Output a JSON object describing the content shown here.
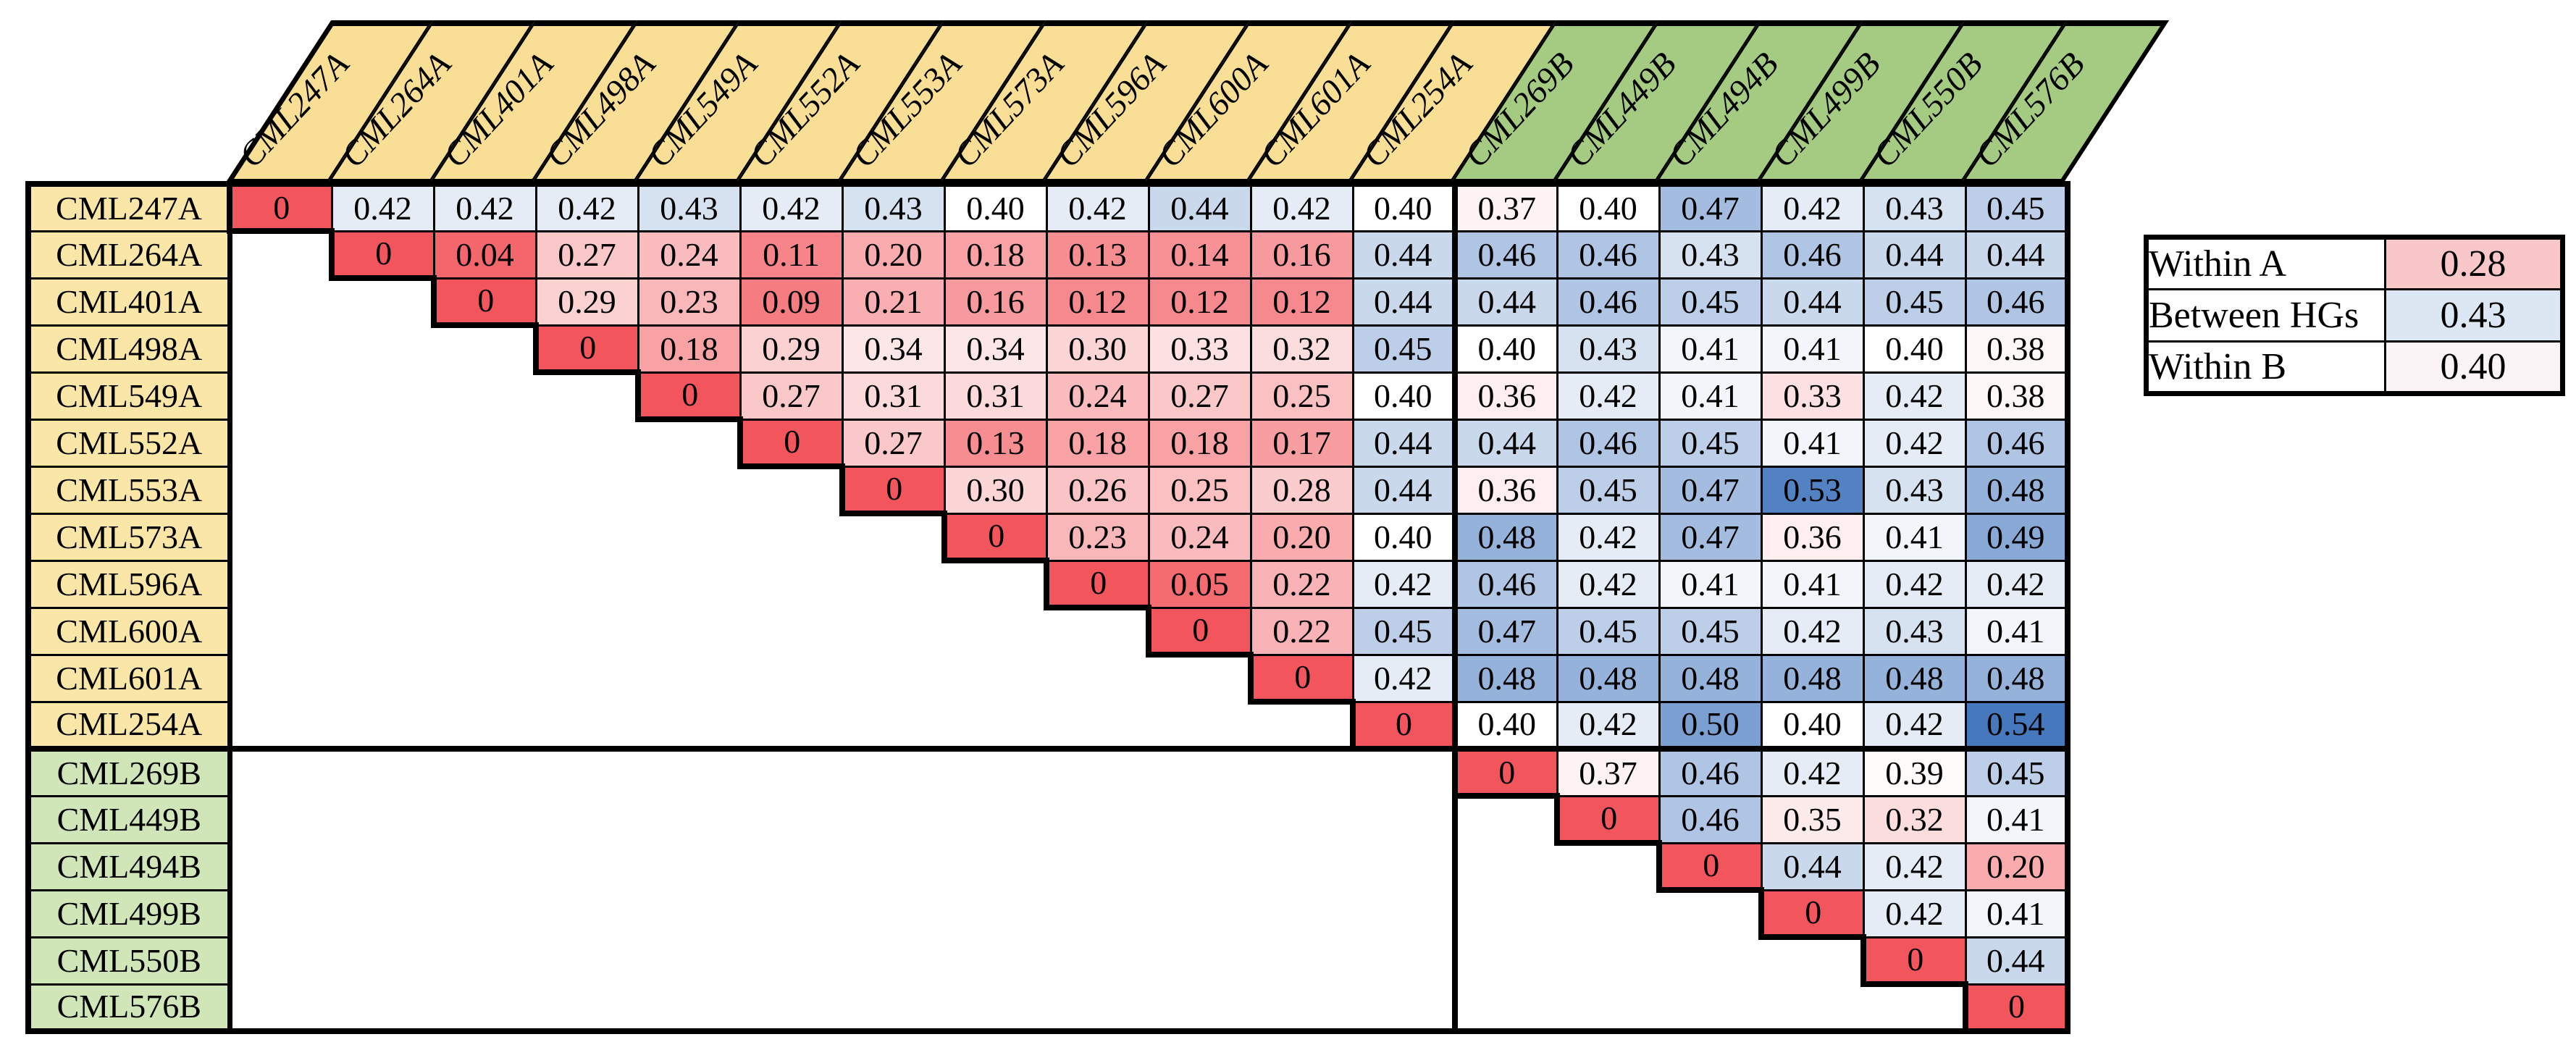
{
  "chart_data": {
    "type": "heatmap",
    "labels": [
      "CML247A",
      "CML264A",
      "CML401A",
      "CML498A",
      "CML549A",
      "CML552A",
      "CML553A",
      "CML573A",
      "CML596A",
      "CML600A",
      "CML601A",
      "CML254A",
      "CML269B",
      "CML449B",
      "CML494B",
      "CML499B",
      "CML550B",
      "CML576B"
    ],
    "group_a_count": 12,
    "group_b_count": 6,
    "matrix": [
      [
        0,
        0.42,
        0.42,
        0.42,
        0.43,
        0.42,
        0.43,
        0.4,
        0.42,
        0.44,
        0.42,
        0.4,
        0.37,
        0.4,
        0.47,
        0.42,
        0.43,
        0.45
      ],
      [
        null,
        0,
        0.04,
        0.27,
        0.24,
        0.11,
        0.2,
        0.18,
        0.13,
        0.14,
        0.16,
        0.44,
        0.46,
        0.46,
        0.43,
        0.46,
        0.44,
        0.44
      ],
      [
        null,
        null,
        0,
        0.29,
        0.23,
        0.09,
        0.21,
        0.16,
        0.12,
        0.12,
        0.12,
        0.44,
        0.44,
        0.46,
        0.45,
        0.44,
        0.45,
        0.46
      ],
      [
        null,
        null,
        null,
        0,
        0.18,
        0.29,
        0.34,
        0.34,
        0.3,
        0.33,
        0.32,
        0.45,
        0.4,
        0.43,
        0.41,
        0.41,
        0.4,
        0.38
      ],
      [
        null,
        null,
        null,
        null,
        0,
        0.27,
        0.31,
        0.31,
        0.24,
        0.27,
        0.25,
        0.4,
        0.36,
        0.42,
        0.41,
        0.33,
        0.42,
        0.38
      ],
      [
        null,
        null,
        null,
        null,
        null,
        0,
        0.27,
        0.13,
        0.18,
        0.18,
        0.17,
        0.44,
        0.44,
        0.46,
        0.45,
        0.41,
        0.42,
        0.46
      ],
      [
        null,
        null,
        null,
        null,
        null,
        null,
        0,
        0.3,
        0.26,
        0.25,
        0.28,
        0.44,
        0.36,
        0.45,
        0.47,
        0.53,
        0.43,
        0.48
      ],
      [
        null,
        null,
        null,
        null,
        null,
        null,
        null,
        0,
        0.23,
        0.24,
        0.2,
        0.4,
        0.48,
        0.42,
        0.47,
        0.36,
        0.41,
        0.49
      ],
      [
        null,
        null,
        null,
        null,
        null,
        null,
        null,
        null,
        0,
        0.05,
        0.22,
        0.42,
        0.46,
        0.42,
        0.41,
        0.41,
        0.42,
        0.42
      ],
      [
        null,
        null,
        null,
        null,
        null,
        null,
        null,
        null,
        null,
        0,
        0.22,
        0.45,
        0.47,
        0.45,
        0.45,
        0.42,
        0.43,
        0.41
      ],
      [
        null,
        null,
        null,
        null,
        null,
        null,
        null,
        null,
        null,
        null,
        0,
        0.42,
        0.48,
        0.48,
        0.48,
        0.48,
        0.48,
        0.48
      ],
      [
        null,
        null,
        null,
        null,
        null,
        null,
        null,
        null,
        null,
        null,
        null,
        0,
        0.4,
        0.42,
        0.5,
        0.4,
        0.42,
        0.54
      ],
      [
        null,
        null,
        null,
        null,
        null,
        null,
        null,
        null,
        null,
        null,
        null,
        null,
        0,
        0.37,
        0.46,
        0.42,
        0.39,
        0.45
      ],
      [
        null,
        null,
        null,
        null,
        null,
        null,
        null,
        null,
        null,
        null,
        null,
        null,
        null,
        0,
        0.46,
        0.35,
        0.32,
        0.41
      ],
      [
        null,
        null,
        null,
        null,
        null,
        null,
        null,
        null,
        null,
        null,
        null,
        null,
        null,
        null,
        0,
        0.44,
        0.42,
        0.2
      ],
      [
        null,
        null,
        null,
        null,
        null,
        null,
        null,
        null,
        null,
        null,
        null,
        null,
        null,
        null,
        null,
        0,
        0.42,
        0.41
      ],
      [
        null,
        null,
        null,
        null,
        null,
        null,
        null,
        null,
        null,
        null,
        null,
        null,
        null,
        null,
        null,
        null,
        0,
        0.44
      ],
      [
        null,
        null,
        null,
        null,
        null,
        null,
        null,
        null,
        null,
        null,
        null,
        null,
        null,
        null,
        null,
        null,
        null,
        0
      ]
    ],
    "legend_position": "right",
    "grid": true
  },
  "legend": {
    "rows": [
      {
        "label": "Within A",
        "value": "0.28",
        "swatch": "#F9C7CA"
      },
      {
        "label": "Between HGs",
        "value": "0.43",
        "swatch": "#DDE7F3"
      },
      {
        "label": "Within B",
        "value": "0.40",
        "swatch": "#FBF4F6"
      }
    ]
  },
  "colors": {
    "header_a": "#F8DF95",
    "header_b": "#A5CB82",
    "row_label_a": "#FAE6A6",
    "row_label_b": "#D0E6B9",
    "scale_low": "#F2565C",
    "scale_mid": "#FFFFFF",
    "scale_high": "#4678BE",
    "border": "#000000",
    "background": "#FFFFFF"
  },
  "scale": {
    "min_value": 0,
    "mid_value": 0.4,
    "max_value": 0.54
  }
}
